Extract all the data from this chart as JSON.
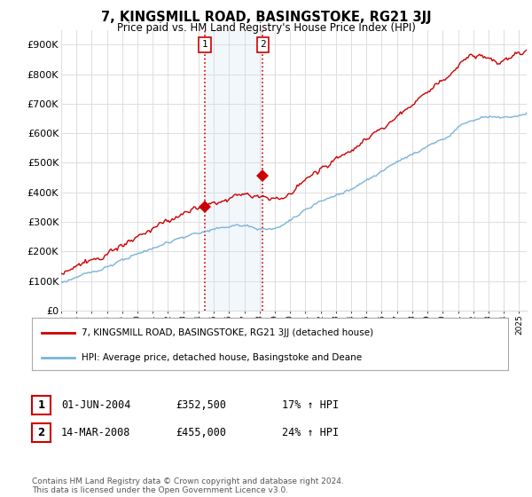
{
  "title": "7, KINGSMILL ROAD, BASINGSTOKE, RG21 3JJ",
  "subtitle": "Price paid vs. HM Land Registry's House Price Index (HPI)",
  "ylim": [
    0,
    950000
  ],
  "yticks": [
    0,
    100000,
    200000,
    300000,
    400000,
    500000,
    600000,
    700000,
    800000,
    900000
  ],
  "ytick_labels": [
    "£0",
    "£100K",
    "£200K",
    "£300K",
    "£400K",
    "£500K",
    "£600K",
    "£700K",
    "£800K",
    "£900K"
  ],
  "transaction1_x": 2004.417,
  "transaction1_price": 352500,
  "transaction2_x": 2008.208,
  "transaction2_price": 455000,
  "hpi_line_color": "#7ab4d8",
  "price_line_color": "#cc0000",
  "vline_color": "#cc0000",
  "shading_color": "#daeaf5",
  "legend_label_price": "7, KINGSMILL ROAD, BASINGSTOKE, RG21 3JJ (detached house)",
  "legend_label_hpi": "HPI: Average price, detached house, Basingstoke and Deane",
  "table_row1": [
    "1",
    "01-JUN-2004",
    "£352,500",
    "17% ↑ HPI"
  ],
  "table_row2": [
    "2",
    "14-MAR-2008",
    "£455,000",
    "24% ↑ HPI"
  ],
  "footer": "Contains HM Land Registry data © Crown copyright and database right 2024.\nThis data is licensed under the Open Government Licence v3.0.",
  "grid_color": "#dddddd",
  "box_color": "#cc0000"
}
